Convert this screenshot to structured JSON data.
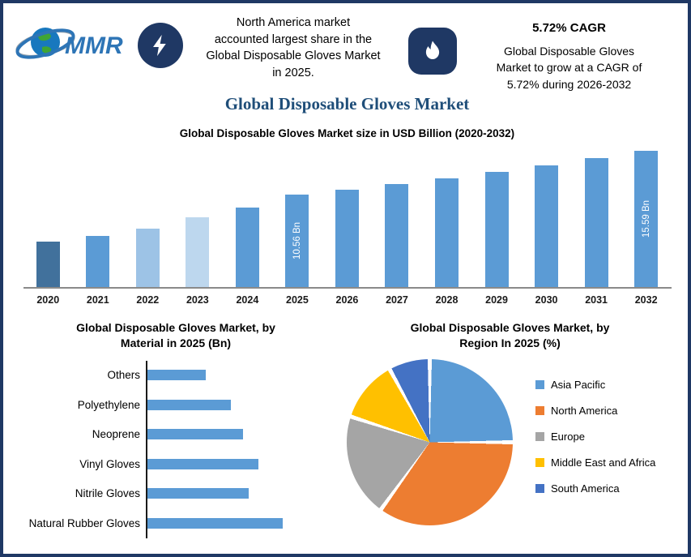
{
  "header": {
    "logo_text": "MMR",
    "left_note": "North America market\naccounted largest share in the\nGlobal Disposable Gloves Market\nin 2025.",
    "cagr_title": "5.72% CAGR",
    "cagr_note": "Global Disposable Gloves\nMarket to grow at a CAGR of\n5.72% during 2026-2032"
  },
  "page_title": "Global Disposable Gloves Market",
  "colors": {
    "frame": "#1F3864",
    "badge": "#1F3864",
    "title": "#1F4E79",
    "bar_default": "#5B9BD5"
  },
  "chart_data": [
    {
      "type": "bar",
      "title": "Global Disposable Gloves Market size in USD Billion (2020-2032)",
      "unit": "USD Billion",
      "categories": [
        "2020",
        "2021",
        "2022",
        "2023",
        "2024",
        "2025",
        "2026",
        "2027",
        "2028",
        "2029",
        "2030",
        "2031",
        "2032"
      ],
      "values": [
        5.2,
        5.9,
        6.7,
        8.0,
        9.1,
        10.56,
        11.16,
        11.8,
        12.48,
        13.19,
        13.95,
        14.75,
        15.59
      ],
      "bar_labels": {
        "2025": "10.56 Bn",
        "2032": "15.59 Bn"
      },
      "bar_colors": [
        "#41719C",
        "#5B9BD5",
        "#9DC3E6",
        "#BDD7EE",
        "#5B9BD5",
        "#5B9BD5",
        "#5B9BD5",
        "#5B9BD5",
        "#5B9BD5",
        "#5B9BD5",
        "#5B9BD5",
        "#5B9BD5",
        "#5B9BD5"
      ],
      "ylim": [
        0,
        16
      ],
      "grid": false,
      "legend": false
    },
    {
      "type": "bar",
      "orientation": "horizontal",
      "title": "Global Disposable Gloves Market, by\nMaterial in 2025 (Bn)",
      "categories": [
        "Others",
        "Polyethylene",
        "Neoprene",
        "Vinyl Gloves",
        "Nitrile Gloves",
        "Natural Rubber Gloves"
      ],
      "values": [
        0.95,
        1.35,
        1.55,
        1.8,
        1.65,
        2.2
      ],
      "bar_color": "#5B9BD5",
      "xlim": [
        0,
        2.5
      ],
      "grid": false,
      "legend": false
    },
    {
      "type": "pie",
      "title": "Global Disposable Gloves Market, by\nRegion In 2025 (%)",
      "labels": [
        "Asia Pacific",
        "North America",
        "Europe",
        "Middle East and Africa",
        "South America"
      ],
      "values": [
        25,
        35,
        20,
        12,
        8
      ],
      "colors": [
        "#5B9BD5",
        "#ED7D31",
        "#A5A5A5",
        "#FFC000",
        "#4472C4"
      ],
      "legend_position": "right"
    }
  ]
}
